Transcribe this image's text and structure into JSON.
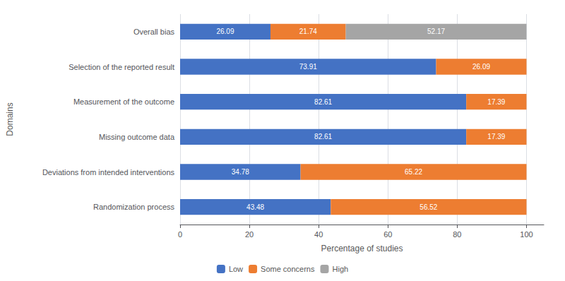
{
  "chart_data": {
    "type": "bar",
    "orientation": "horizontal",
    "stacked": true,
    "data_labels": true,
    "xlabel": "Percentage of studies",
    "ylabel": "Domains",
    "categories": [
      "Randomization process",
      "Deviations from intended interventions",
      "Missing outcome data",
      "Measurement of the outcome",
      "Selection of the reported result",
      "Overall bias"
    ],
    "series": [
      {
        "name": "Low",
        "color": "#4472C4",
        "values": [
          43.48,
          34.78,
          82.61,
          82.61,
          73.91,
          26.09
        ]
      },
      {
        "name": "Some concerns",
        "color": "#ED7D31",
        "values": [
          56.52,
          65.22,
          17.39,
          17.39,
          26.09,
          21.74
        ]
      },
      {
        "name": "High",
        "color": "#A5A5A5",
        "values": [
          0.0,
          0.0,
          0.0,
          0.0,
          0.0,
          52.17
        ]
      }
    ],
    "xlim": [
      0,
      105
    ],
    "xticks": [
      0,
      20,
      40,
      60,
      80,
      100
    ],
    "grid": true,
    "legend": "bottom"
  }
}
